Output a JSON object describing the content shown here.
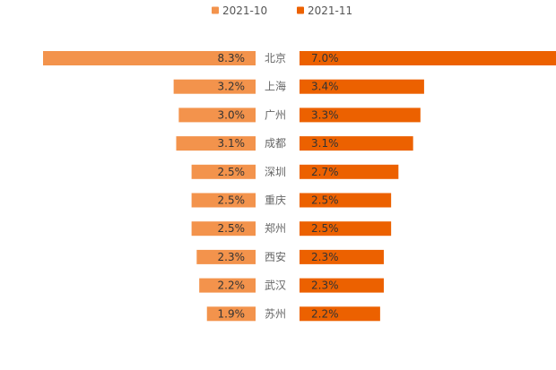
{
  "chart_data": {
    "type": "bar",
    "categories": [
      "北京",
      "上海",
      "广州",
      "成都",
      "深圳",
      "重庆",
      "郑州",
      "西安",
      "武汉",
      "苏州"
    ],
    "series": [
      {
        "name": "2021-10",
        "values": [
          8.3,
          3.2,
          3.0,
          3.1,
          2.5,
          2.5,
          2.5,
          2.3,
          2.2,
          1.9
        ],
        "labels": [
          "8.3%",
          "3.2%",
          "3.0%",
          "3.1%",
          "2.5%",
          "2.5%",
          "2.5%",
          "2.3%",
          "2.2%",
          "1.9%"
        ],
        "color": "#F3934C"
      },
      {
        "name": "2021-11",
        "values": [
          7.0,
          3.4,
          3.3,
          3.1,
          2.7,
          2.5,
          2.5,
          2.3,
          2.3,
          2.2
        ],
        "labels": [
          "7.0%",
          "3.4%",
          "3.3%",
          "3.1%",
          "2.7%",
          "2.5%",
          "2.5%",
          "2.3%",
          "2.3%",
          "2.2%"
        ],
        "color": "#EC6100"
      }
    ],
    "title": "",
    "xlabel": "",
    "ylabel": "",
    "legend": "top-center"
  }
}
